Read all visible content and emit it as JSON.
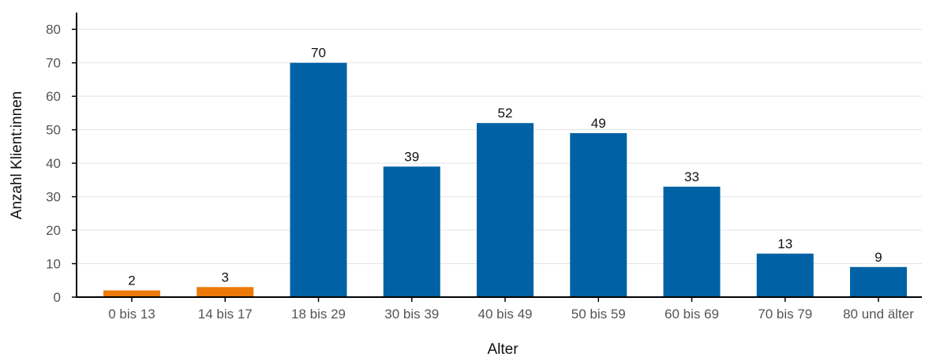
{
  "chart_data": {
    "type": "bar",
    "title": "",
    "xlabel": "Alter",
    "ylabel": "Anzahl Klient:innen",
    "categories": [
      "0 bis 13",
      "14 bis 17",
      "18 bis 29",
      "30 bis 39",
      "40 bis 49",
      "50 bis 59",
      "60 bis 69",
      "70 bis 79",
      "80 und älter"
    ],
    "values": [
      2,
      3,
      70,
      39,
      52,
      49,
      33,
      13,
      9
    ],
    "bar_colors": [
      "#ec7a08",
      "#ec7a08",
      "#0062a5",
      "#0062a5",
      "#0062a5",
      "#0062a5",
      "#0062a5",
      "#0062a5",
      "#0062a5"
    ],
    "ylim": [
      0,
      85
    ],
    "yticks": [
      0,
      10,
      20,
      30,
      40,
      50,
      60,
      70,
      80
    ],
    "grid": true,
    "legend": "none"
  }
}
